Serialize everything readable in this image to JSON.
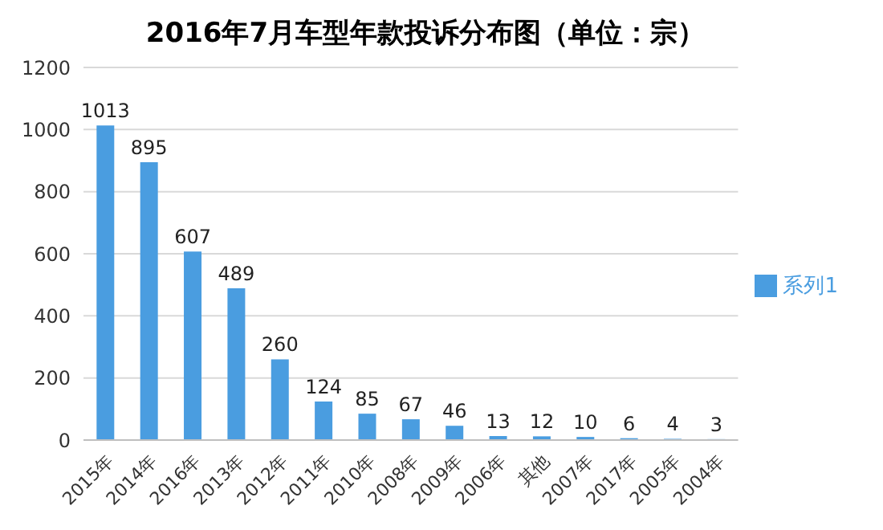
{
  "chart_data": {
    "type": "bar",
    "title": "2016年7月车型年款投诉分布图（单位：宗）",
    "categories": [
      "2015年",
      "2014年",
      "2016年",
      "2013年",
      "2012年",
      "2011年",
      "2010年",
      "2008年",
      "2009年",
      "2006年",
      "其他",
      "2007年",
      "2017年",
      "2005年",
      "2004年"
    ],
    "series": [
      {
        "name": "系列1",
        "color": "#4a9de0",
        "values": [
          1013,
          895,
          607,
          489,
          260,
          124,
          85,
          67,
          46,
          13,
          12,
          10,
          6,
          4,
          3
        ]
      }
    ],
    "ylim": [
      0,
      1200
    ],
    "yticks": [
      0,
      200,
      400,
      600,
      800,
      1000,
      1200
    ],
    "grid": "y",
    "legend": "right",
    "data_labels": true
  }
}
